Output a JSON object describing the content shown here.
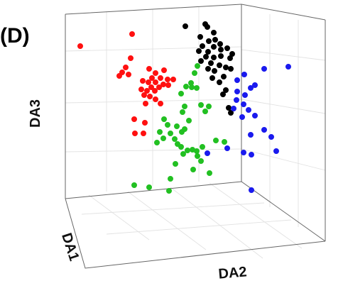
{
  "panel_label": "(D)",
  "chart_data": {
    "type": "scatter",
    "dimensions": "3d",
    "xlabel": "DA1",
    "ylabel": "DA2",
    "zlabel": "DA3",
    "grid": true,
    "legend": "none",
    "series": [
      {
        "color": "#ff1010",
        "points": [
          [
            113,
            65
          ],
          [
            186,
            48
          ],
          [
            184,
            82
          ],
          [
            177,
            95
          ],
          [
            172,
            102
          ],
          [
            181,
            105
          ],
          [
            168,
            107
          ],
          [
            210,
            97
          ],
          [
            231,
            99
          ],
          [
            219,
            103
          ],
          [
            214,
            110
          ],
          [
            226,
            110
          ],
          [
            236,
            112
          ],
          [
            244,
            112
          ],
          [
            201,
            114
          ],
          [
            209,
            116
          ],
          [
            219,
            116
          ],
          [
            230,
            119
          ],
          [
            237,
            120
          ],
          [
            213,
            123
          ],
          [
            224,
            123
          ],
          [
            199,
            126
          ],
          [
            207,
            128
          ],
          [
            218,
            128
          ],
          [
            203,
            134
          ],
          [
            211,
            136
          ],
          [
            219,
            140
          ],
          [
            205,
            146
          ],
          [
            226,
            146
          ],
          [
            189,
            168
          ],
          [
            204,
            173
          ],
          [
            190,
            188
          ],
          [
            202,
            188
          ]
        ]
      },
      {
        "color": "#22c022",
        "points": [
          [
            278,
            93
          ],
          [
            274,
            103
          ],
          [
            269,
            117
          ],
          [
            262,
            122
          ],
          [
            270,
            123
          ],
          [
            277,
            124
          ],
          [
            255,
            132
          ],
          [
            283,
            148
          ],
          [
            294,
            150
          ],
          [
            289,
            157
          ],
          [
            260,
            150
          ],
          [
            257,
            158
          ],
          [
            231,
            168
          ],
          [
            236,
            176
          ],
          [
            266,
            170
          ],
          [
            249,
            178
          ],
          [
            256,
            186
          ],
          [
            260,
            182
          ],
          [
            225,
            186
          ],
          [
            230,
            195
          ],
          [
            221,
            201
          ],
          [
            240,
            188
          ],
          [
            246,
            196
          ],
          [
            250,
            203
          ],
          [
            255,
            207
          ],
          [
            264,
            212
          ],
          [
            271,
            211
          ],
          [
            277,
            213
          ],
          [
            285,
            207
          ],
          [
            304,
            198
          ],
          [
            316,
            200
          ],
          [
            278,
            220
          ],
          [
            283,
            227
          ],
          [
            258,
            217
          ],
          [
            247,
            231
          ],
          [
            272,
            239
          ],
          [
            295,
            244
          ],
          [
            240,
            252
          ],
          [
            189,
            261
          ],
          [
            210,
            264
          ],
          [
            238,
            269
          ]
        ]
      },
      {
        "color": "#000000",
        "points": [
          [
            261,
            37
          ],
          [
            289,
            34
          ],
          [
            292,
            38
          ],
          [
            301,
            46
          ],
          [
            282,
            52
          ],
          [
            294,
            58
          ],
          [
            303,
            56
          ],
          [
            310,
            62
          ],
          [
            285,
            65
          ],
          [
            301,
            66
          ],
          [
            311,
            70
          ],
          [
            320,
            68
          ],
          [
            280,
            72
          ],
          [
            293,
            73
          ],
          [
            327,
            76
          ],
          [
            290,
            80
          ],
          [
            301,
            81
          ],
          [
            311,
            79
          ],
          [
            324,
            82
          ],
          [
            283,
            86
          ],
          [
            297,
            89
          ],
          [
            309,
            92
          ],
          [
            318,
            95
          ],
          [
            293,
            97
          ],
          [
            302,
            100
          ],
          [
            325,
            97
          ],
          [
            315,
            108
          ],
          [
            299,
            110
          ],
          [
            309,
            116
          ],
          [
            318,
            127
          ],
          [
            314,
            133
          ],
          [
            322,
            152
          ],
          [
            325,
            159
          ]
        ]
      },
      {
        "color": "#1a1aee",
        "points": [
          [
            372,
            97
          ],
          [
            406,
            94
          ],
          [
            344,
            105
          ],
          [
            334,
            113
          ],
          [
            359,
            120
          ],
          [
            353,
            124
          ],
          [
            334,
            129
          ],
          [
            345,
            134
          ],
          [
            333,
            141
          ],
          [
            343,
            147
          ],
          [
            329,
            153
          ],
          [
            350,
            155
          ],
          [
            359,
            163
          ],
          [
            341,
            165
          ],
          [
            372,
            183
          ],
          [
            353,
            190
          ],
          [
            382,
            193
          ],
          [
            320,
            209
          ],
          [
            343,
            215
          ],
          [
            354,
            218
          ],
          [
            389,
            213
          ],
          [
            292,
            216
          ],
          [
            354,
            268
          ]
        ]
      }
    ]
  }
}
